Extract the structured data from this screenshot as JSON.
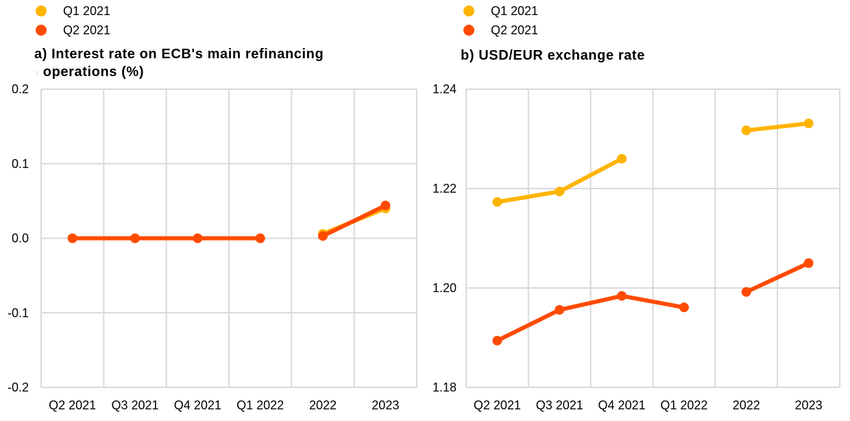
{
  "colors": {
    "q1": "#FFB400",
    "q2": "#FF4B00",
    "grid": "#d9d9d9"
  },
  "legend": [
    {
      "label": "Q1 2021",
      "color": "#FFB400"
    },
    {
      "label": "Q2 2021",
      "color": "#FF4B00"
    }
  ],
  "chart_data": [
    {
      "type": "line",
      "title_line1": "a) Interest rate on ECB's main refinancing",
      "title_line2": "operations (%)",
      "categories": [
        "Q2 2021",
        "Q3 2021",
        "Q4 2021",
        "Q1 2022",
        "2022",
        "2023"
      ],
      "ylim": [
        -0.2,
        0.2
      ],
      "yticks": [
        "0.2",
        "0.1",
        "0.0",
        "-0.1",
        "-0.2"
      ],
      "grid": true,
      "legend_position": "top-left",
      "series": [
        {
          "name": "Q1 2021",
          "color": "#FFB400",
          "segments": [
            [
              0,
              1,
              2,
              3
            ],
            [
              4,
              5
            ]
          ],
          "values": [
            0.0,
            0.0,
            0.0,
            0.0,
            0.006,
            0.04
          ]
        },
        {
          "name": "Q2 2021",
          "color": "#FF4B00",
          "segments": [
            [
              0,
              1,
              2,
              3
            ],
            [
              4,
              5
            ]
          ],
          "values": [
            0.0,
            0.0,
            0.0,
            0.0,
            0.003,
            0.044
          ]
        }
      ]
    },
    {
      "type": "line",
      "title_line1": "b) USD/EUR exchange rate",
      "title_line2": "",
      "categories": [
        "Q2 2021",
        "Q3 2021",
        "Q4 2021",
        "Q1 2022",
        "2022",
        "2023"
      ],
      "ylim": [
        1.18,
        1.24
      ],
      "yticks": [
        "1.24",
        "1.22",
        "1.20",
        "1.18"
      ],
      "grid": true,
      "legend_position": "top-left",
      "series": [
        {
          "name": "Q1 2021",
          "color": "#FFB400",
          "segments": [
            [
              0,
              1,
              2
            ],
            [
              4,
              5
            ]
          ],
          "values": [
            1.2173,
            1.2194,
            1.226,
            null,
            1.2317,
            1.2331
          ]
        },
        {
          "name": "Q2 2021",
          "color": "#FF4B00",
          "segments": [
            [
              0,
              1,
              2,
              3
            ],
            [
              4,
              5
            ]
          ],
          "values": [
            1.1894,
            1.1956,
            1.1984,
            1.1961,
            1.1992,
            1.205
          ]
        }
      ]
    }
  ]
}
